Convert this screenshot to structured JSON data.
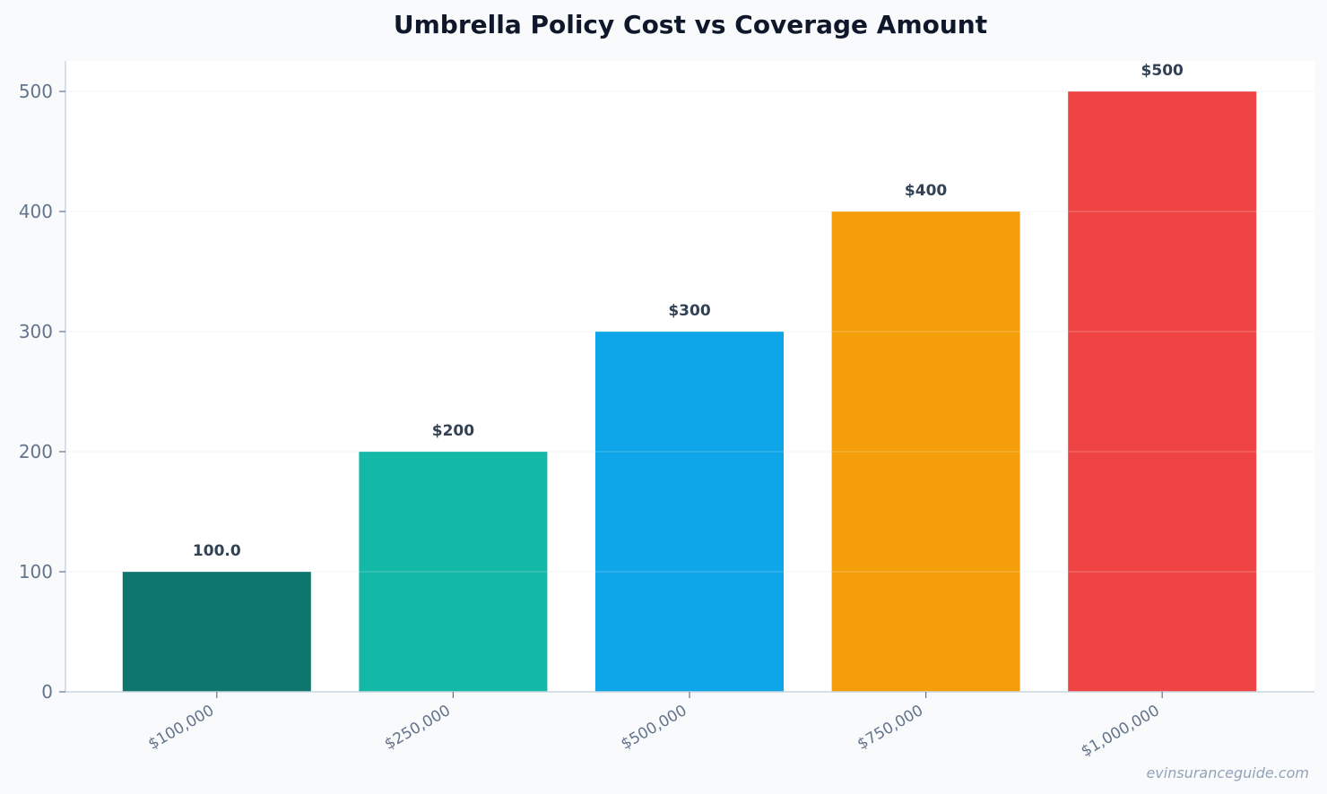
{
  "chart_data": {
    "type": "bar",
    "title": "Umbrella Policy Cost vs Coverage Amount",
    "xlabel": "",
    "ylabel": "",
    "categories": [
      "$100,000",
      "$250,000",
      "$500,000",
      "$750,000",
      "$1,000,000"
    ],
    "values": [
      100,
      200,
      300,
      400,
      500
    ],
    "data_labels": [
      "100.0",
      "$200",
      "$300",
      "$400",
      "$500"
    ],
    "colors": [
      "#0f766e",
      "#14b8a6",
      "#0ea5e9",
      "#f59e0b",
      "#ef4444"
    ],
    "ylim": [
      0,
      525
    ],
    "yticks": [
      0,
      100,
      200,
      300,
      400,
      500
    ],
    "grid": true,
    "legend": "none"
  },
  "watermark": "evinsuranceguide.com",
  "style": {
    "background": "#f8fafc",
    "plot_background": "#ffffff",
    "axis_color": "#cbd5e1",
    "grid_color": "#e2e8f0"
  }
}
